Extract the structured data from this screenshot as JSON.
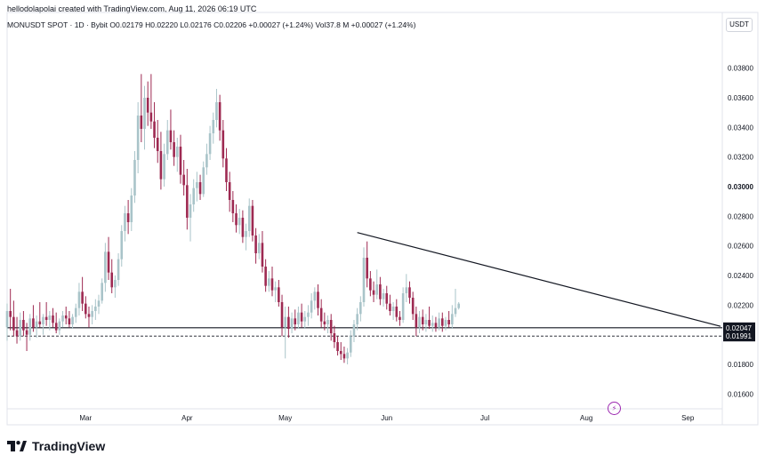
{
  "header": {
    "author_line": "hellodolapolai created with TradingView.com, Aug 11, 2026 06:19 UTC"
  },
  "symbol_line": "MONUSDT SPOT · 1D · Bybit  O0.02179  H0.02220  L0.02176  C0.02206  +0.00027 (+1.24%)  Vol37.8 M  +0.00027 (+1.24%)",
  "currency": "USDT",
  "footer": {
    "brand": "TradingView"
  },
  "colors": {
    "up": "#a9c4c9",
    "down": "#9e2a52",
    "trendline": "#131722",
    "support_tag": "#131722"
  },
  "icons": {
    "event": "lightning-icon",
    "logo": "tradingview-logo-icon"
  },
  "chart_data": {
    "type": "candlestick",
    "title": "",
    "xlabel": "",
    "ylabel": "",
    "x_ticks": [
      "Mar",
      "Apr",
      "May",
      "Jun",
      "Jul",
      "Aug",
      "Sep"
    ],
    "y_ticks": [
      "0.03800",
      "0.03600",
      "0.03400",
      "0.03200",
      "0.03000",
      "0.02800",
      "0.02600",
      "0.02400",
      "0.02200",
      "0.01800",
      "0.01600"
    ],
    "y_bold_tick": "0.03000",
    "ylim": [
      0.015,
      0.0402
    ],
    "date_range": [
      "2026-02-05",
      "2026-09-11"
    ],
    "price_tags": [
      {
        "value": "0.02047",
        "style": "solid"
      },
      {
        "value": "0.01991",
        "style": "dashed"
      }
    ],
    "lines": {
      "support": {
        "value": 0.02047
      },
      "dashed_level": {
        "value": 0.01991
      },
      "trendline": {
        "from": [
          "2026-05-23",
          0.0269
        ],
        "to": [
          "2026-09-11",
          0.02057
        ]
      }
    },
    "series": [
      {
        "o": 0.0205,
        "h": 0.0221,
        "l": 0.0196,
        "c": 0.0216
      },
      {
        "o": 0.0216,
        "h": 0.0231,
        "l": 0.0203,
        "c": 0.0212
      },
      {
        "o": 0.0212,
        "h": 0.0223,
        "l": 0.0199,
        "c": 0.0203
      },
      {
        "o": 0.0203,
        "h": 0.0212,
        "l": 0.0194,
        "c": 0.0199
      },
      {
        "o": 0.0199,
        "h": 0.0215,
        "l": 0.0196,
        "c": 0.021
      },
      {
        "o": 0.021,
        "h": 0.0216,
        "l": 0.0199,
        "c": 0.0203
      },
      {
        "o": 0.0203,
        "h": 0.0208,
        "l": 0.0189,
        "c": 0.02
      },
      {
        "o": 0.02,
        "h": 0.0214,
        "l": 0.0196,
        "c": 0.0211
      },
      {
        "o": 0.0211,
        "h": 0.022,
        "l": 0.0202,
        "c": 0.0205
      },
      {
        "o": 0.0205,
        "h": 0.0213,
        "l": 0.0198,
        "c": 0.0209
      },
      {
        "o": 0.0209,
        "h": 0.0222,
        "l": 0.0205,
        "c": 0.0207
      },
      {
        "o": 0.0207,
        "h": 0.0214,
        "l": 0.02,
        "c": 0.0212
      },
      {
        "o": 0.0212,
        "h": 0.0222,
        "l": 0.0206,
        "c": 0.021
      },
      {
        "o": 0.021,
        "h": 0.0216,
        "l": 0.0203,
        "c": 0.0213
      },
      {
        "o": 0.0213,
        "h": 0.0218,
        "l": 0.0205,
        "c": 0.0208
      },
      {
        "o": 0.0208,
        "h": 0.0215,
        "l": 0.0201,
        "c": 0.0203
      },
      {
        "o": 0.0203,
        "h": 0.0211,
        "l": 0.02,
        "c": 0.0209
      },
      {
        "o": 0.0209,
        "h": 0.0216,
        "l": 0.0205,
        "c": 0.0213
      },
      {
        "o": 0.0213,
        "h": 0.0219,
        "l": 0.0207,
        "c": 0.0211
      },
      {
        "o": 0.0211,
        "h": 0.0216,
        "l": 0.0205,
        "c": 0.0207
      },
      {
        "o": 0.0207,
        "h": 0.0214,
        "l": 0.0204,
        "c": 0.0212
      },
      {
        "o": 0.0212,
        "h": 0.0221,
        "l": 0.0208,
        "c": 0.0218
      },
      {
        "o": 0.0218,
        "h": 0.0235,
        "l": 0.0213,
        "c": 0.0229
      },
      {
        "o": 0.0229,
        "h": 0.0239,
        "l": 0.0216,
        "c": 0.0221
      },
      {
        "o": 0.0221,
        "h": 0.0226,
        "l": 0.0211,
        "c": 0.0214
      },
      {
        "o": 0.0214,
        "h": 0.0219,
        "l": 0.0205,
        "c": 0.0212
      },
      {
        "o": 0.0212,
        "h": 0.022,
        "l": 0.0207,
        "c": 0.0216
      },
      {
        "o": 0.0216,
        "h": 0.0224,
        "l": 0.021,
        "c": 0.0219
      },
      {
        "o": 0.0219,
        "h": 0.0227,
        "l": 0.0214,
        "c": 0.0223
      },
      {
        "o": 0.0223,
        "h": 0.0238,
        "l": 0.0221,
        "c": 0.0235
      },
      {
        "o": 0.0235,
        "h": 0.0262,
        "l": 0.0229,
        "c": 0.0256
      },
      {
        "o": 0.0256,
        "h": 0.0266,
        "l": 0.0237,
        "c": 0.0242
      },
      {
        "o": 0.0242,
        "h": 0.0251,
        "l": 0.0228,
        "c": 0.0232
      },
      {
        "o": 0.0232,
        "h": 0.024,
        "l": 0.0225,
        "c": 0.0237
      },
      {
        "o": 0.0237,
        "h": 0.0255,
        "l": 0.0233,
        "c": 0.0251
      },
      {
        "o": 0.0251,
        "h": 0.0274,
        "l": 0.0246,
        "c": 0.027
      },
      {
        "o": 0.027,
        "h": 0.0287,
        "l": 0.0263,
        "c": 0.0282
      },
      {
        "o": 0.0282,
        "h": 0.0291,
        "l": 0.0268,
        "c": 0.0276
      },
      {
        "o": 0.0276,
        "h": 0.0299,
        "l": 0.027,
        "c": 0.0294
      },
      {
        "o": 0.0294,
        "h": 0.0324,
        "l": 0.0289,
        "c": 0.0318
      },
      {
        "o": 0.0318,
        "h": 0.0357,
        "l": 0.0309,
        "c": 0.0348
      },
      {
        "o": 0.0348,
        "h": 0.0376,
        "l": 0.033,
        "c": 0.0339
      },
      {
        "o": 0.0339,
        "h": 0.0368,
        "l": 0.0325,
        "c": 0.036
      },
      {
        "o": 0.036,
        "h": 0.0371,
        "l": 0.0341,
        "c": 0.035
      },
      {
        "o": 0.035,
        "h": 0.0376,
        "l": 0.0339,
        "c": 0.0344
      },
      {
        "o": 0.0344,
        "h": 0.0357,
        "l": 0.0326,
        "c": 0.0333
      },
      {
        "o": 0.0333,
        "h": 0.0345,
        "l": 0.0316,
        "c": 0.0324
      },
      {
        "o": 0.0324,
        "h": 0.0337,
        "l": 0.0298,
        "c": 0.0305
      },
      {
        "o": 0.0305,
        "h": 0.0329,
        "l": 0.03,
        "c": 0.0322
      },
      {
        "o": 0.0322,
        "h": 0.0345,
        "l": 0.0318,
        "c": 0.0338
      },
      {
        "o": 0.0338,
        "h": 0.0352,
        "l": 0.0325,
        "c": 0.033
      },
      {
        "o": 0.033,
        "h": 0.0338,
        "l": 0.0314,
        "c": 0.032
      },
      {
        "o": 0.032,
        "h": 0.0333,
        "l": 0.031,
        "c": 0.0327
      },
      {
        "o": 0.0327,
        "h": 0.0335,
        "l": 0.0302,
        "c": 0.0308
      },
      {
        "o": 0.0308,
        "h": 0.0318,
        "l": 0.0294,
        "c": 0.0301
      },
      {
        "o": 0.0301,
        "h": 0.0312,
        "l": 0.0271,
        "c": 0.0279
      },
      {
        "o": 0.0279,
        "h": 0.0295,
        "l": 0.0263,
        "c": 0.0288
      },
      {
        "o": 0.0288,
        "h": 0.0305,
        "l": 0.0283,
        "c": 0.0299
      },
      {
        "o": 0.0299,
        "h": 0.031,
        "l": 0.029,
        "c": 0.0303
      },
      {
        "o": 0.0303,
        "h": 0.0308,
        "l": 0.0291,
        "c": 0.0295
      },
      {
        "o": 0.0295,
        "h": 0.0317,
        "l": 0.0293,
        "c": 0.0313
      },
      {
        "o": 0.0313,
        "h": 0.0329,
        "l": 0.0308,
        "c": 0.0322
      },
      {
        "o": 0.0322,
        "h": 0.0341,
        "l": 0.0318,
        "c": 0.0336
      },
      {
        "o": 0.0336,
        "h": 0.035,
        "l": 0.0329,
        "c": 0.0345
      },
      {
        "o": 0.0345,
        "h": 0.0366,
        "l": 0.034,
        "c": 0.0357
      },
      {
        "o": 0.0357,
        "h": 0.0362,
        "l": 0.0331,
        "c": 0.0338
      },
      {
        "o": 0.0338,
        "h": 0.0345,
        "l": 0.0313,
        "c": 0.0319
      },
      {
        "o": 0.0319,
        "h": 0.0326,
        "l": 0.0297,
        "c": 0.0303
      },
      {
        "o": 0.0303,
        "h": 0.031,
        "l": 0.0283,
        "c": 0.0291
      },
      {
        "o": 0.0291,
        "h": 0.0297,
        "l": 0.0276,
        "c": 0.0282
      },
      {
        "o": 0.0282,
        "h": 0.0288,
        "l": 0.0269,
        "c": 0.0274
      },
      {
        "o": 0.0274,
        "h": 0.0285,
        "l": 0.0268,
        "c": 0.0279
      },
      {
        "o": 0.0279,
        "h": 0.0284,
        "l": 0.0262,
        "c": 0.0266
      },
      {
        "o": 0.0266,
        "h": 0.0275,
        "l": 0.0257,
        "c": 0.027
      },
      {
        "o": 0.027,
        "h": 0.0292,
        "l": 0.0266,
        "c": 0.0287
      },
      {
        "o": 0.0287,
        "h": 0.0291,
        "l": 0.0263,
        "c": 0.0267
      },
      {
        "o": 0.0267,
        "h": 0.0272,
        "l": 0.0248,
        "c": 0.0255
      },
      {
        "o": 0.0255,
        "h": 0.0268,
        "l": 0.0251,
        "c": 0.0262
      },
      {
        "o": 0.0262,
        "h": 0.027,
        "l": 0.0242,
        "c": 0.0246
      },
      {
        "o": 0.0246,
        "h": 0.0251,
        "l": 0.0229,
        "c": 0.0233
      },
      {
        "o": 0.0233,
        "h": 0.0243,
        "l": 0.0229,
        "c": 0.0238
      },
      {
        "o": 0.0238,
        "h": 0.0246,
        "l": 0.0226,
        "c": 0.023
      },
      {
        "o": 0.023,
        "h": 0.0236,
        "l": 0.0222,
        "c": 0.0232
      },
      {
        "o": 0.0232,
        "h": 0.0237,
        "l": 0.0219,
        "c": 0.0222
      },
      {
        "o": 0.0222,
        "h": 0.0227,
        "l": 0.0199,
        "c": 0.0205
      },
      {
        "o": 0.0205,
        "h": 0.0219,
        "l": 0.0184,
        "c": 0.0212
      },
      {
        "o": 0.0212,
        "h": 0.0219,
        "l": 0.0198,
        "c": 0.0204
      },
      {
        "o": 0.0204,
        "h": 0.0215,
        "l": 0.0201,
        "c": 0.0211
      },
      {
        "o": 0.0211,
        "h": 0.0217,
        "l": 0.0203,
        "c": 0.0207
      },
      {
        "o": 0.0207,
        "h": 0.0219,
        "l": 0.0204,
        "c": 0.0215
      },
      {
        "o": 0.0215,
        "h": 0.0221,
        "l": 0.0205,
        "c": 0.0209
      },
      {
        "o": 0.0209,
        "h": 0.0216,
        "l": 0.0204,
        "c": 0.0212
      },
      {
        "o": 0.0212,
        "h": 0.022,
        "l": 0.0206,
        "c": 0.0215
      },
      {
        "o": 0.0215,
        "h": 0.0228,
        "l": 0.0211,
        "c": 0.0223
      },
      {
        "o": 0.0223,
        "h": 0.0232,
        "l": 0.0217,
        "c": 0.0229
      },
      {
        "o": 0.0229,
        "h": 0.0234,
        "l": 0.0213,
        "c": 0.0218
      },
      {
        "o": 0.0218,
        "h": 0.0224,
        "l": 0.0205,
        "c": 0.0209
      },
      {
        "o": 0.0209,
        "h": 0.0215,
        "l": 0.0203,
        "c": 0.0207
      },
      {
        "o": 0.0207,
        "h": 0.0213,
        "l": 0.0201,
        "c": 0.021
      },
      {
        "o": 0.021,
        "h": 0.0214,
        "l": 0.0196,
        "c": 0.0201
      },
      {
        "o": 0.0201,
        "h": 0.0206,
        "l": 0.0191,
        "c": 0.0195
      },
      {
        "o": 0.0195,
        "h": 0.0199,
        "l": 0.0186,
        "c": 0.0189
      },
      {
        "o": 0.0189,
        "h": 0.0195,
        "l": 0.0183,
        "c": 0.0187
      },
      {
        "o": 0.0187,
        "h": 0.0192,
        "l": 0.0181,
        "c": 0.0184
      },
      {
        "o": 0.0184,
        "h": 0.0191,
        "l": 0.018,
        "c": 0.0188
      },
      {
        "o": 0.0188,
        "h": 0.0203,
        "l": 0.0185,
        "c": 0.0199
      },
      {
        "o": 0.0199,
        "h": 0.021,
        "l": 0.0195,
        "c": 0.0207
      },
      {
        "o": 0.0207,
        "h": 0.0218,
        "l": 0.0203,
        "c": 0.0214
      },
      {
        "o": 0.0214,
        "h": 0.0226,
        "l": 0.0209,
        "c": 0.0222
      },
      {
        "o": 0.0222,
        "h": 0.0259,
        "l": 0.0219,
        "c": 0.0252
      },
      {
        "o": 0.0252,
        "h": 0.0263,
        "l": 0.0232,
        "c": 0.0238
      },
      {
        "o": 0.0238,
        "h": 0.0243,
        "l": 0.0226,
        "c": 0.023
      },
      {
        "o": 0.023,
        "h": 0.0236,
        "l": 0.0222,
        "c": 0.0227
      },
      {
        "o": 0.0227,
        "h": 0.0244,
        "l": 0.0224,
        "c": 0.0234
      },
      {
        "o": 0.0234,
        "h": 0.0239,
        "l": 0.022,
        "c": 0.0224
      },
      {
        "o": 0.0224,
        "h": 0.0231,
        "l": 0.0219,
        "c": 0.0228
      },
      {
        "o": 0.0228,
        "h": 0.0233,
        "l": 0.0217,
        "c": 0.0221
      },
      {
        "o": 0.0221,
        "h": 0.0227,
        "l": 0.0213,
        "c": 0.0216
      },
      {
        "o": 0.0216,
        "h": 0.0222,
        "l": 0.021,
        "c": 0.0219
      },
      {
        "o": 0.0219,
        "h": 0.0224,
        "l": 0.0209,
        "c": 0.0212
      },
      {
        "o": 0.0212,
        "h": 0.0216,
        "l": 0.0206,
        "c": 0.021
      },
      {
        "o": 0.021,
        "h": 0.0232,
        "l": 0.0208,
        "c": 0.0228
      },
      {
        "o": 0.0228,
        "h": 0.0241,
        "l": 0.0222,
        "c": 0.0232
      },
      {
        "o": 0.0232,
        "h": 0.0236,
        "l": 0.0221,
        "c": 0.0225
      },
      {
        "o": 0.0225,
        "h": 0.0229,
        "l": 0.021,
        "c": 0.0214
      },
      {
        "o": 0.0214,
        "h": 0.0219,
        "l": 0.0199,
        "c": 0.0205
      },
      {
        "o": 0.0205,
        "h": 0.0216,
        "l": 0.0201,
        "c": 0.0212
      },
      {
        "o": 0.0212,
        "h": 0.0217,
        "l": 0.0203,
        "c": 0.0207
      },
      {
        "o": 0.0207,
        "h": 0.0214,
        "l": 0.0202,
        "c": 0.021
      },
      {
        "o": 0.021,
        "h": 0.0219,
        "l": 0.0204,
        "c": 0.0206
      },
      {
        "o": 0.0206,
        "h": 0.0213,
        "l": 0.0202,
        "c": 0.0208
      },
      {
        "o": 0.0208,
        "h": 0.0212,
        "l": 0.0202,
        "c": 0.0205
      },
      {
        "o": 0.0205,
        "h": 0.0215,
        "l": 0.0203,
        "c": 0.0211
      },
      {
        "o": 0.0211,
        "h": 0.0215,
        "l": 0.0202,
        "c": 0.0206
      },
      {
        "o": 0.0206,
        "h": 0.0212,
        "l": 0.0203,
        "c": 0.021
      },
      {
        "o": 0.021,
        "h": 0.0216,
        "l": 0.0205,
        "c": 0.0207
      },
      {
        "o": 0.0207,
        "h": 0.022,
        "l": 0.0204,
        "c": 0.0214
      },
      {
        "o": 0.0214,
        "h": 0.0231,
        "l": 0.0212,
        "c": 0.0218
      },
      {
        "o": 0.0218,
        "h": 0.0222,
        "l": 0.0217,
        "c": 0.0221
      }
    ]
  }
}
